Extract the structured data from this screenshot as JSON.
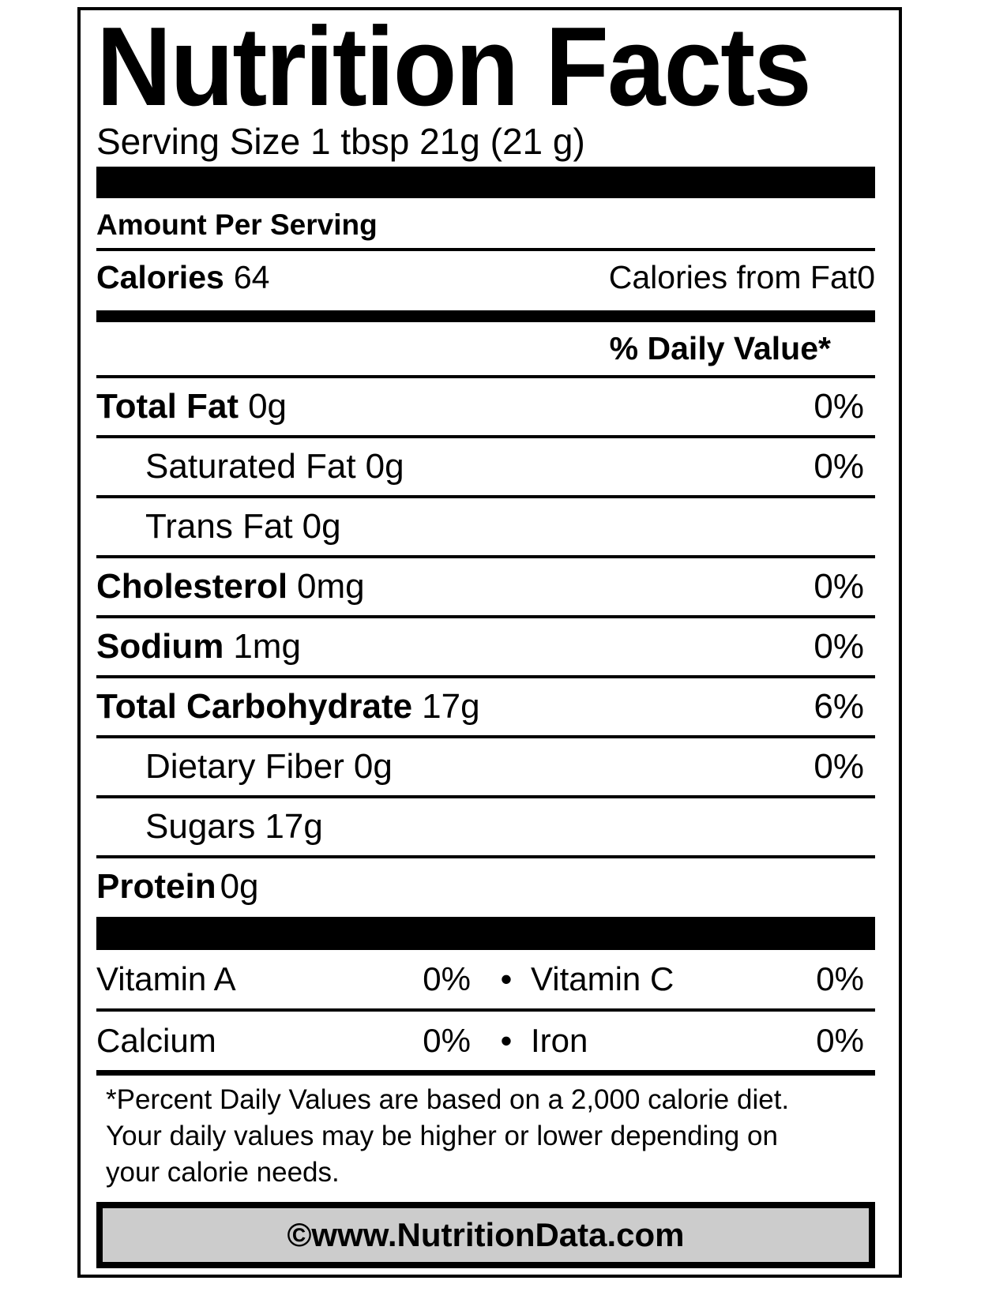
{
  "colors": {
    "text": "#000000",
    "background": "#ffffff",
    "copyright_bar_bg": "#cccccc"
  },
  "label": {
    "title": "Nutrition Facts",
    "serving_size": "Serving Size 1 tbsp 21g (21 g)",
    "amount_per_serving": "Amount Per Serving",
    "calories": {
      "label": "Calories",
      "value": "64",
      "from_fat_label": "Calories from Fat",
      "from_fat_value": "0"
    },
    "daily_value_header": "% Daily Value*",
    "nutrients": [
      {
        "name": "Total Fat",
        "amount": "0g",
        "dv": "0%"
      },
      {
        "name": "Saturated Fat",
        "amount": "0g",
        "dv": "0%"
      },
      {
        "name": "Trans Fat",
        "amount": "0g",
        "dv": ""
      },
      {
        "name": "Cholesterol",
        "amount": "0mg",
        "dv": "0%"
      },
      {
        "name": "Sodium",
        "amount": "1mg",
        "dv": "0%"
      },
      {
        "name": "Total Carbohydrate",
        "amount": "17g",
        "dv": "6%"
      },
      {
        "name": "Dietary Fiber",
        "amount": "0g",
        "dv": "0%"
      },
      {
        "name": "Sugars",
        "amount": "17g",
        "dv": ""
      },
      {
        "name": "Protein",
        "amount": "0g",
        "dv": ""
      }
    ],
    "bullet": "•",
    "vitamins": [
      {
        "left_name": "Vitamin A",
        "left_value": "0%",
        "right_name": "Vitamin C",
        "right_value": "0%"
      },
      {
        "left_name": "Calcium",
        "left_value": "0%",
        "right_name": "Iron",
        "right_value": "0%"
      }
    ],
    "footnote_lines": [
      "*Percent Daily Values are based on a 2,000 calorie diet.",
      "Your daily values may be higher or lower depending on",
      "your calorie needs."
    ],
    "copyright": "©www.NutritionData.com"
  }
}
